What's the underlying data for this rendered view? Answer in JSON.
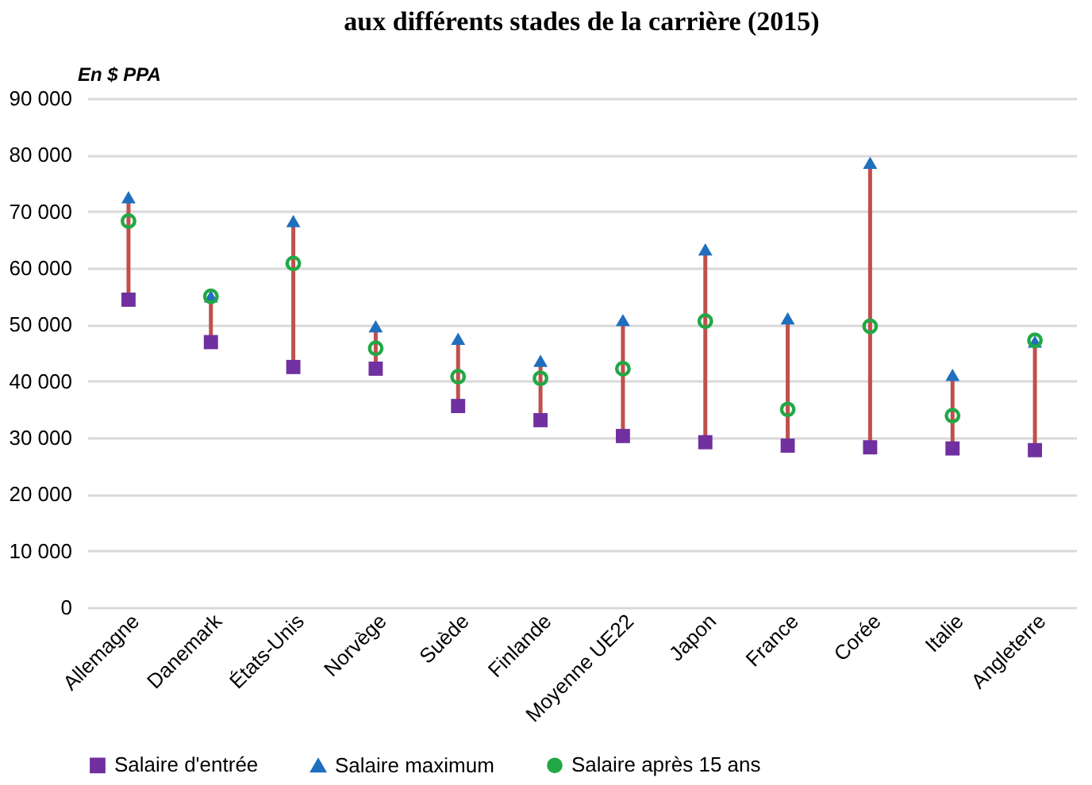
{
  "chart_data": {
    "type": "scatter",
    "title": "aux différents stades de la carrière (2015)",
    "ylabel": "En $ PPA",
    "categories": [
      "Allemagne",
      "Danemark",
      "États-Unis",
      "Norvège",
      "Suède",
      "Finlande",
      "Moyenne UE22",
      "Japon",
      "France",
      "Corée",
      "Italie",
      "Angleterre"
    ],
    "series": [
      {
        "name": "Salaire d'entrée",
        "color": "#7030a0",
        "marker": "square",
        "values": [
          54400,
          46900,
          42500,
          42200,
          35600,
          33100,
          30300,
          29200,
          28600,
          28300,
          28100,
          27800
        ]
      },
      {
        "name": "Salaire maximum",
        "color": "#1f6fbf",
        "marker": "triangle",
        "values": [
          72500,
          55000,
          68300,
          49700,
          47500,
          43600,
          50800,
          63300,
          51100,
          78600,
          41100,
          47000
        ]
      },
      {
        "name": "Salaire après 15 ans",
        "color": "#21a845",
        "marker": "circle",
        "values": [
          68300,
          55000,
          60800,
          45800,
          40800,
          40500,
          42200,
          50600,
          35000,
          49700,
          33900,
          47200
        ]
      }
    ],
    "ylim": [
      0,
      90000
    ],
    "yticks": [
      {
        "value": 0,
        "label": "0"
      },
      {
        "value": 10000,
        "label": "10 000"
      },
      {
        "value": 20000,
        "label": "20 000"
      },
      {
        "value": 30000,
        "label": "30 000"
      },
      {
        "value": 40000,
        "label": "40 000"
      },
      {
        "value": 50000,
        "label": "50 000"
      },
      {
        "value": 60000,
        "label": "60 000"
      },
      {
        "value": 70000,
        "label": "70 000"
      },
      {
        "value": 80000,
        "label": "80 000"
      },
      {
        "value": 90000,
        "label": "90 000"
      }
    ],
    "grid": "y",
    "legend": "bottom"
  }
}
